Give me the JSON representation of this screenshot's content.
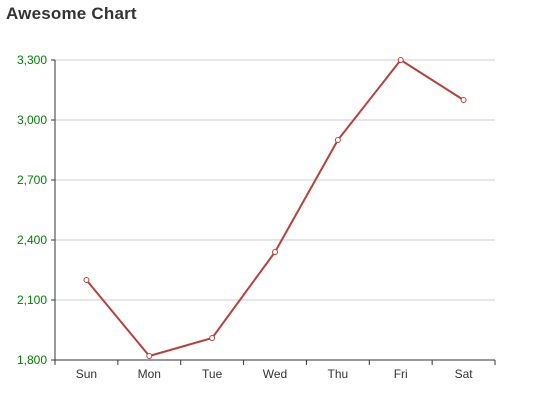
{
  "chart_data": {
    "type": "line",
    "title": "Awesome Chart",
    "xlabel": "",
    "ylabel": "",
    "categories": [
      "Sun",
      "Mon",
      "Tue",
      "Wed",
      "Thu",
      "Fri",
      "Sat"
    ],
    "series": [
      {
        "values": [
          2200,
          1820,
          1910,
          2340,
          2900,
          3300,
          3100
        ],
        "color": "#b7423b"
      }
    ],
    "ylim": [
      1800,
      3300
    ],
    "yticks": [
      1800,
      2100,
      2400,
      2700,
      3000,
      3300
    ],
    "ytick_labels": [
      "1,800",
      "2,100",
      "2,400",
      "2,700",
      "3,000",
      "3,300"
    ],
    "ytick_color": "#008000",
    "grid": true,
    "legend": "none"
  }
}
